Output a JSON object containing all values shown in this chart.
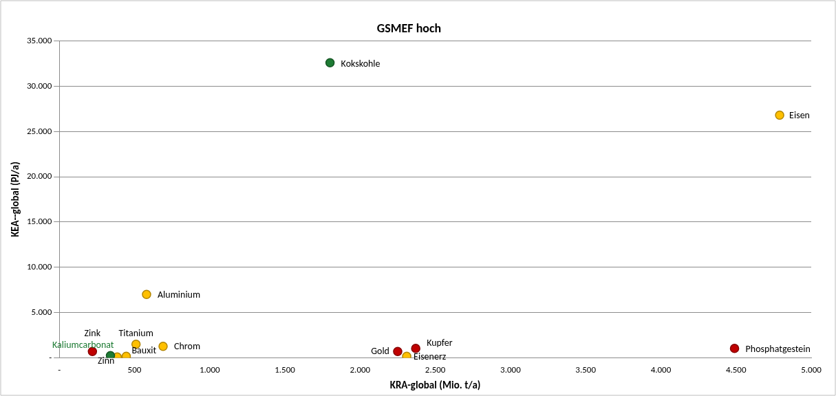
{
  "chart_data": {
    "type": "scatter",
    "title": "GSMEF hoch",
    "xlabel": "KRA-global (Mio. t/a)",
    "ylabel": "KEA--global (PJ/a)",
    "xlim": [
      0,
      5000
    ],
    "xticks": [
      {
        "value": 0,
        "label": "-"
      },
      {
        "value": 500,
        "label": "500"
      },
      {
        "value": 1000,
        "label": "1.000"
      },
      {
        "value": 1500,
        "label": "1.500"
      },
      {
        "value": 2000,
        "label": "2.000"
      },
      {
        "value": 2500,
        "label": "2.500"
      },
      {
        "value": 3000,
        "label": "3.000"
      },
      {
        "value": 3500,
        "label": "3.500"
      },
      {
        "value": 4000,
        "label": "4.000"
      },
      {
        "value": 4500,
        "label": "4.500"
      },
      {
        "value": 5000,
        "label": "5.000"
      }
    ],
    "ylim": [
      0,
      35000
    ],
    "yticks": [
      {
        "value": 0,
        "label": "-"
      },
      {
        "value": 5000,
        "label": "5.000"
      },
      {
        "value": 10000,
        "label": "10.000"
      },
      {
        "value": 15000,
        "label": "15.000"
      },
      {
        "value": 20000,
        "label": "20.000"
      },
      {
        "value": 25000,
        "label": "25.000"
      },
      {
        "value": 30000,
        "label": "30.000"
      },
      {
        "value": 35000,
        "label": "35.000"
      }
    ],
    "grid": "y",
    "legend": false,
    "marker": "circle",
    "series": [
      {
        "name": "Kokskohle",
        "color": "#1e7b34",
        "x": [
          1800
        ],
        "values": [
          32600
        ]
      },
      {
        "name": "Eisen",
        "color": "#ffc000",
        "x": [
          4790
        ],
        "values": [
          26800
        ]
      },
      {
        "name": "Aluminium",
        "color": "#ffc000",
        "x": [
          580
        ],
        "values": [
          7000
        ]
      },
      {
        "name": "Zink",
        "color": "#c00000",
        "x": [
          220
        ],
        "values": [
          700
        ]
      },
      {
        "name": "Kaliumcarbonat",
        "color": "#1e7b34",
        "x": [
          340
        ],
        "values": [
          240
        ]
      },
      {
        "name": "Zinn",
        "color": "#ffc000",
        "x": [
          385
        ],
        "values": [
          80
        ]
      },
      {
        "name": "Bauxit",
        "color": "#ffc000",
        "x": [
          445
        ],
        "values": [
          160
        ]
      },
      {
        "name": "Titanium",
        "color": "#ffc000",
        "x": [
          510
        ],
        "values": [
          1500
        ]
      },
      {
        "name": "Chrom",
        "color": "#ffc000",
        "x": [
          690
        ],
        "values": [
          1270
        ]
      },
      {
        "name": "Gold",
        "color": "#c00000",
        "x": [
          2250
        ],
        "values": [
          700
        ]
      },
      {
        "name": "Eisenerz",
        "color": "#ffc000",
        "x": [
          2310
        ],
        "values": [
          160
        ]
      },
      {
        "name": "Kupfer",
        "color": "#c00000",
        "x": [
          2370
        ],
        "values": [
          1030
        ]
      },
      {
        "name": "Phosphatgestein",
        "color": "#c00000",
        "x": [
          4490
        ],
        "values": [
          1030
        ]
      }
    ]
  }
}
